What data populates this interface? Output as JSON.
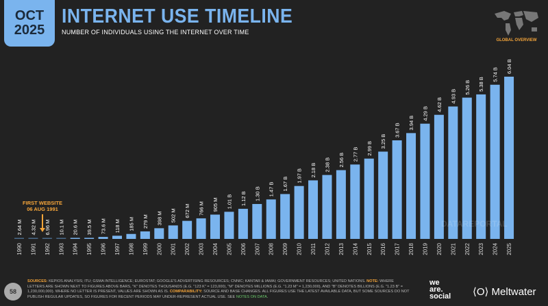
{
  "header": {
    "month": "OCT",
    "year": "2025",
    "title": "INTERNET USE TIMELINE",
    "subtitle": "NUMBER OF INDIVIDUALS USING THE INTERNET OVER TIME",
    "section": "GLOBAL OVERVIEW"
  },
  "annotation": {
    "line1": "FIRST WEBSITE",
    "line2": "06 AUG 1991"
  },
  "watermark": "DATAREPORTAL",
  "footer": {
    "page": "58",
    "sources_label": "SOURCES:",
    "sources_text": " KEPIOS ANALYSIS; ITU; GSMA INTELLIGENCE; EUROSTAT; GOOGLE'S ADVERTISING RESOURCES; CNNIC; KANTAR & IAMAI; GOVERNMENT RESOURCES; UNITED NATIONS. ",
    "note_label": "NOTE:",
    "note_text": " WHERE LETTERS ARE SHOWN NEXT TO FIGURES ABOVE BARS, \"K\" DENOTES THOUSANDS (E.G. \"123 K\" = 123,000), \"M\" DENOTES MILLIONS (E.G. \"1.23 M\" = 1,230,000), AND \"B\" DENOTES BILLIONS (E.G. \"1.23 B\" = 1,230,000,000). WHERE NO LETTER IS PRESENT, VALUES ARE SHOWN AS IS. ",
    "comp_label": "COMPARABILITY:",
    "comp_text": " SOURCE AND BASE CHANGES. ALL FIGURES USE THE LATEST AVAILABLE DATA, BUT SOME SOURCES DO NOT PUBLISH REGULAR UPDATES, SO FIGURES FOR RECENT PERIODS MAY UNDER-REPRESENT ACTUAL USE. SEE ",
    "link": "NOTES ON DATA",
    "end": ".",
    "brand1": "we are social",
    "brand2": "Meltwater"
  },
  "colors": {
    "bar": "#7ab4ee",
    "accent": "#f5a53a",
    "background": "#222222"
  },
  "chart_data": {
    "type": "bar",
    "categories": [
      "1990",
      "1991",
      "1992",
      "1993",
      "1994",
      "1995",
      "1996",
      "1997",
      "1998",
      "1999",
      "2000",
      "2001",
      "2002",
      "2003",
      "2004",
      "2005",
      "2006",
      "2007",
      "2008",
      "2009",
      "2010",
      "2011",
      "2012",
      "2013",
      "2014",
      "2015",
      "2016",
      "2017",
      "2018",
      "2019",
      "2020",
      "2021",
      "2022",
      "2023",
      "2024",
      "2025"
    ],
    "values": [
      0.00264,
      0.00432,
      0.00696,
      0.0101,
      0.0206,
      0.0395,
      0.0736,
      0.118,
      0.185,
      0.279,
      0.398,
      0.502,
      0.672,
      0.766,
      0.905,
      1.01,
      1.12,
      1.3,
      1.47,
      1.67,
      1.97,
      2.18,
      2.38,
      2.56,
      2.77,
      2.99,
      3.25,
      3.67,
      3.94,
      4.29,
      4.62,
      4.93,
      5.26,
      5.38,
      5.74,
      6.04
    ],
    "labels": [
      "2.64 M",
      "4.32 M",
      "6.96 M",
      "10.1 M",
      "20.6 M",
      "39.5 M",
      "73.6 M",
      "118 M",
      "185 M",
      "279 M",
      "398 M",
      "502 M",
      "672 M",
      "766 M",
      "905 M",
      "1.01 B",
      "1.12 B",
      "1.30 B",
      "1.47 B",
      "1.67 B",
      "1.97 B",
      "2.18 B",
      "2.38 B",
      "2.56 B",
      "2.77 B",
      "2.99 B",
      "3.25 B",
      "3.67 B",
      "3.94 B",
      "4.29 B",
      "4.62 B",
      "4.93 B",
      "5.26 B",
      "5.38 B",
      "5.74 B",
      "6.04 B"
    ],
    "unit": "billions",
    "grid": false
  }
}
